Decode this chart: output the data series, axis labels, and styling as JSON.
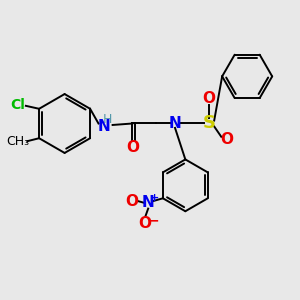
{
  "background_color": "#e8e8e8",
  "bond_color": "#000000",
  "bond_width": 1.4,
  "Cl_color": "#00bb00",
  "N_color": "#0000ee",
  "O_color": "#ee0000",
  "S_color": "#cccc00",
  "H_color": "#5599aa",
  "text_color": "#000000",
  "ring_r": 0.85,
  "xlim": [
    0,
    10
  ],
  "ylim": [
    0,
    10
  ]
}
